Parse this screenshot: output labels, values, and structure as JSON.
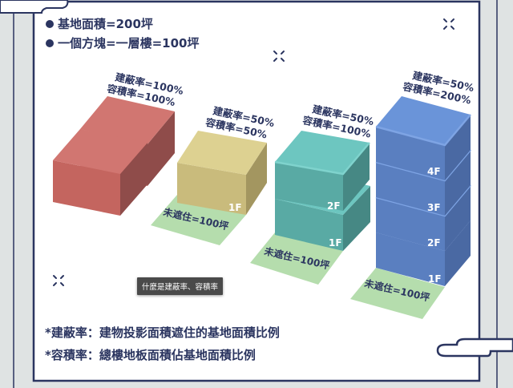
{
  "header": {
    "bullets": [
      "基地面積=200坪",
      "一個方塊=一層樓=100坪"
    ]
  },
  "blocks": [
    {
      "id": "red",
      "coverage_label": "建蔽率=100%",
      "far_label": "容積率=100%",
      "floors": [],
      "uncovered_label": "",
      "colors": {
        "top": "#d17671",
        "front": "#c4655f",
        "side": "#8f4c4a"
      }
    },
    {
      "id": "yellow",
      "coverage_label": "建蔽率=50%",
      "far_label": "容積率=50%",
      "floors": [
        "1F"
      ],
      "uncovered_label": "未遮住=100坪",
      "colors": {
        "top": "#ddd191",
        "front": "#c9bb7c",
        "side": "#a39660"
      }
    },
    {
      "id": "teal",
      "coverage_label": "建蔽率=50%",
      "far_label": "容積率=100%",
      "floors": [
        "1F",
        "2F"
      ],
      "uncovered_label": "未遮住=100坪",
      "colors": {
        "top": "#6dc6c0",
        "front": "#59aaa4",
        "side": "#468884"
      }
    },
    {
      "id": "blue",
      "coverage_label": "建蔽率=50%",
      "far_label": "容積率=200%",
      "floors": [
        "1F",
        "2F",
        "3F",
        "4F"
      ],
      "uncovered_label": "未遮住=100坪",
      "colors": {
        "top": "#6a94d9",
        "front": "#5a7fc0",
        "side": "#4a69a3"
      }
    }
  ],
  "pad_color": "#b5ddad",
  "notes": [
    "*建蔽率：建物投影面積遮住的基地面積比例",
    "*容積率：總樓地板面積佔基地面積比例"
  ],
  "tooltip": "什麼是建蔽率、容積率"
}
